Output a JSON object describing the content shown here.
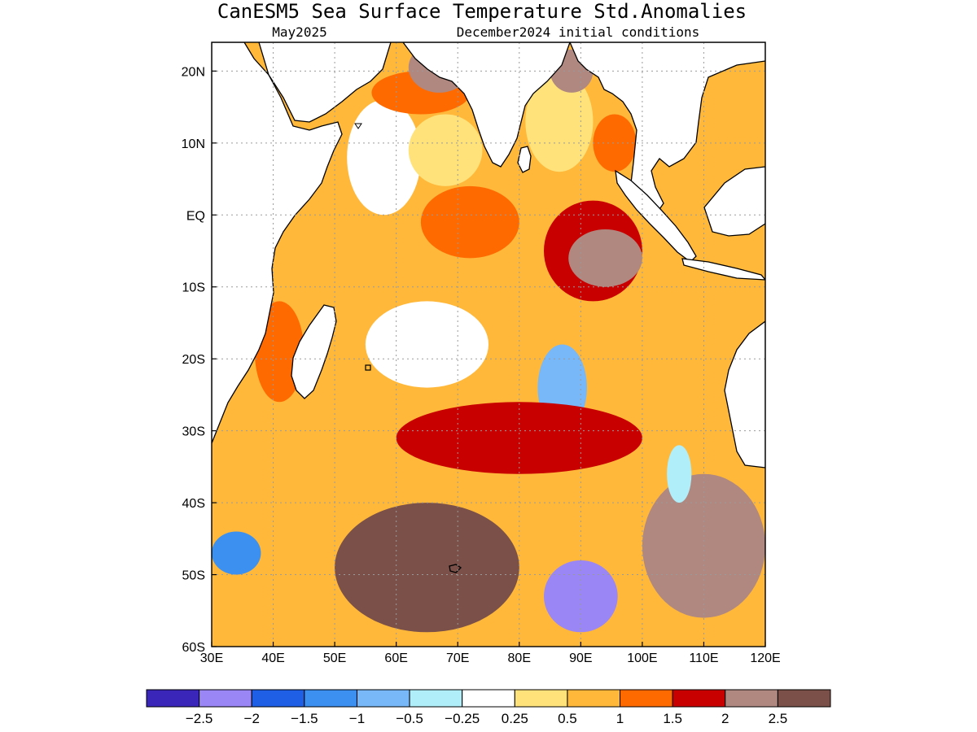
{
  "title": "CanESM5 Sea Surface Temperature Std.Anomalies",
  "subtitle_left": "May2025",
  "subtitle_right": "December2024 initial conditions",
  "map": {
    "lon_range": [
      30,
      120
    ],
    "lat_range": [
      -60,
      24
    ],
    "lon_ticks": [
      {
        "value": 30,
        "label": "30E"
      },
      {
        "value": 40,
        "label": "40E"
      },
      {
        "value": 50,
        "label": "50E"
      },
      {
        "value": 60,
        "label": "60E"
      },
      {
        "value": 70,
        "label": "70E"
      },
      {
        "value": 80,
        "label": "80E"
      },
      {
        "value": 90,
        "label": "90E"
      },
      {
        "value": 100,
        "label": "100E"
      },
      {
        "value": 110,
        "label": "110E"
      },
      {
        "value": 120,
        "label": "120E"
      }
    ],
    "lat_ticks": [
      {
        "value": 20,
        "label": "20N"
      },
      {
        "value": 10,
        "label": "10N"
      },
      {
        "value": 0,
        "label": "EQ"
      },
      {
        "value": -10,
        "label": "10S"
      },
      {
        "value": -20,
        "label": "20S"
      },
      {
        "value": -30,
        "label": "30S"
      },
      {
        "value": -40,
        "label": "40S"
      },
      {
        "value": -50,
        "label": "50S"
      },
      {
        "value": -60,
        "label": "60S"
      }
    ],
    "grid": true,
    "grid_style": "dotted"
  },
  "colorbar": {
    "colors": [
      "#3a26b8",
      "#9b86f5",
      "#1f5fe6",
      "#3c90f0",
      "#78b8f8",
      "#b0eefa",
      "#ffffff",
      "#ffe27a",
      "#ffb83a",
      "#ff6a00",
      "#c80000",
      "#b08880",
      "#7a5048"
    ],
    "labels": [
      "−2.5",
      "−2",
      "−1.5",
      "−1",
      "−0.5",
      "−0.25",
      "0.25",
      "0.5",
      "1",
      "1.5",
      "2",
      "2.5"
    ]
  },
  "anomaly_regions": [
    {
      "name": "arabian-sea-west",
      "lon": [
        52,
        64
      ],
      "lat": [
        0,
        16
      ],
      "level": 0
    },
    {
      "name": "arabian-sea-east",
      "lon": [
        62,
        74
      ],
      "lat": [
        4,
        14
      ],
      "level": 1
    },
    {
      "name": "arabian-sea-coast",
      "lon": [
        56,
        72
      ],
      "lat": [
        14,
        20
      ],
      "level": 3
    },
    {
      "name": "pakistan-coast",
      "lon": [
        62,
        72
      ],
      "lat": [
        17,
        24
      ],
      "level": 5
    },
    {
      "name": "equatorial-central",
      "lon": [
        64,
        80
      ],
      "lat": [
        -6,
        4
      ],
      "level": 3
    },
    {
      "name": "bay-of-bengal",
      "lon": [
        81,
        92
      ],
      "lat": [
        6,
        20
      ],
      "level": 1
    },
    {
      "name": "bay-of-bengal-north",
      "lon": [
        85,
        92
      ],
      "lat": [
        17,
        23
      ],
      "level": 5
    },
    {
      "name": "andaman-sea",
      "lon": [
        92,
        99
      ],
      "lat": [
        6,
        14
      ],
      "level": 3
    },
    {
      "name": "east-equatorial",
      "lon": [
        84,
        100
      ],
      "lat": [
        -12,
        2
      ],
      "level": 4
    },
    {
      "name": "sumatra-west",
      "lon": [
        88,
        100
      ],
      "lat": [
        -10,
        -2
      ],
      "level": 5
    },
    {
      "name": "south-china-sea",
      "lon": [
        105,
        118
      ],
      "lat": [
        6,
        20
      ],
      "level": 2
    },
    {
      "name": "madagascar-channel",
      "lon": [
        37,
        45
      ],
      "lat": [
        -26,
        -12
      ],
      "level": 3
    },
    {
      "name": "south-tropical",
      "lon": [
        55,
        75
      ],
      "lat": [
        -24,
        -12
      ],
      "level": 0
    },
    {
      "name": "central-south-cool",
      "lon": [
        83,
        91
      ],
      "lat": [
        -30,
        -18
      ],
      "level": -2
    },
    {
      "name": "subtropical-band",
      "lon": [
        60,
        100
      ],
      "lat": [
        -36,
        -26
      ],
      "level": 4
    },
    {
      "name": "southern-warm-brown",
      "lon": [
        50,
        80
      ],
      "lat": [
        -58,
        -40
      ],
      "level": 6
    },
    {
      "name": "kerguelen-cold",
      "lon": [
        84,
        96
      ],
      "lat": [
        -58,
        -48
      ],
      "level": -5
    },
    {
      "name": "southwest-cool",
      "lon": [
        30,
        38
      ],
      "lat": [
        -50,
        -44
      ],
      "level": -3
    },
    {
      "name": "southeast-warm",
      "lon": [
        100,
        120
      ],
      "lat": [
        -56,
        -36
      ],
      "level": 5
    },
    {
      "name": "australia-west-cool",
      "lon": [
        104,
        108
      ],
      "lat": [
        -40,
        -32
      ],
      "level": -1
    }
  ]
}
